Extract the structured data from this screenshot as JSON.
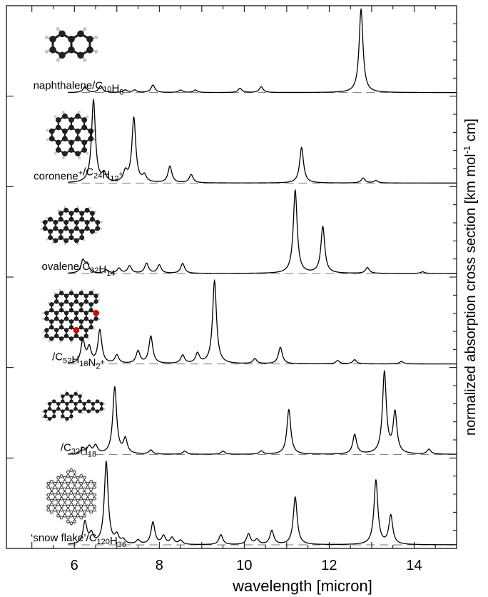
{
  "chart_data": {
    "type": "line",
    "xlabel": "wavelength [micron]",
    "ylabel": "normalized absorption cross section [km mol⁻¹ cm]",
    "xlim": [
      4.4,
      15
    ],
    "x_ticks": [
      6,
      8,
      10,
      12,
      14
    ],
    "x_tick_labels": [
      "6",
      "8",
      "10",
      "12",
      "14"
    ],
    "grid": false,
    "panels": [
      {
        "label": "naphthalene/C10H8",
        "label_parts": [
          [
            "naphthalene/C",
            ""
          ],
          [
            "10",
            "sub"
          ],
          [
            "H",
            ""
          ],
          [
            "8",
            "sub"
          ]
        ],
        "molecule": "naphthalene",
        "peaks": [
          [
            6.25,
            0.07
          ],
          [
            6.62,
            0.08
          ],
          [
            7.2,
            0.03
          ],
          [
            7.42,
            0.03
          ],
          [
            7.85,
            0.09
          ],
          [
            8.5,
            0.03
          ],
          [
            8.85,
            0.03
          ],
          [
            9.9,
            0.05
          ],
          [
            10.4,
            0.07
          ],
          [
            12.75,
            1.0
          ]
        ]
      },
      {
        "label": "coronene+/C24H12+",
        "label_parts": [
          [
            "coronene",
            ""
          ],
          [
            "+",
            "sup"
          ],
          [
            "/C",
            ""
          ],
          [
            "24",
            "sub"
          ],
          [
            "H",
            ""
          ],
          [
            "12",
            "sub"
          ],
          [
            "+",
            "sup"
          ]
        ],
        "molecule": "coronene",
        "peaks": [
          [
            6.45,
            1.0
          ],
          [
            6.7,
            0.1
          ],
          [
            7.2,
            0.12
          ],
          [
            7.4,
            0.78
          ],
          [
            7.65,
            0.08
          ],
          [
            8.25,
            0.2
          ],
          [
            8.75,
            0.1
          ],
          [
            11.35,
            0.43
          ],
          [
            12.8,
            0.06
          ],
          [
            13.1,
            0.03
          ]
        ]
      },
      {
        "label": "ovalene/C32H14",
        "label_parts": [
          [
            "ovalene/C",
            ""
          ],
          [
            "32",
            "sub"
          ],
          [
            "H",
            ""
          ],
          [
            "14",
            "sub"
          ]
        ],
        "molecule": "ovalene",
        "peaks": [
          [
            6.2,
            0.15
          ],
          [
            6.3,
            0.1
          ],
          [
            6.75,
            0.04
          ],
          [
            7.05,
            0.06
          ],
          [
            7.3,
            0.09
          ],
          [
            7.7,
            0.12
          ],
          [
            8.0,
            0.1
          ],
          [
            8.55,
            0.12
          ],
          [
            11.2,
            1.0
          ],
          [
            11.85,
            0.56
          ],
          [
            12.9,
            0.07
          ],
          [
            14.2,
            0.02
          ]
        ]
      },
      {
        "label": "/C52H18N2+",
        "label_parts": [
          [
            "/C",
            ""
          ],
          [
            "52",
            "sub"
          ],
          [
            "H",
            ""
          ],
          [
            "18",
            "sub"
          ],
          [
            "N",
            ""
          ],
          [
            "2",
            "sub"
          ],
          [
            "+",
            "sup"
          ]
        ],
        "molecule": "c52",
        "peaks": [
          [
            6.2,
            0.28
          ],
          [
            6.35,
            0.18
          ],
          [
            6.6,
            0.4
          ],
          [
            7.0,
            0.1
          ],
          [
            7.5,
            0.15
          ],
          [
            7.8,
            0.33
          ],
          [
            8.55,
            0.1
          ],
          [
            8.9,
            0.12
          ],
          [
            9.3,
            1.0
          ],
          [
            10.25,
            0.06
          ],
          [
            10.85,
            0.2
          ],
          [
            12.2,
            0.04
          ],
          [
            12.6,
            0.05
          ],
          [
            13.7,
            0.03
          ]
        ]
      },
      {
        "label": "/C32H18",
        "label_parts": [
          [
            "/C",
            ""
          ],
          [
            "32",
            "sub"
          ],
          [
            "H",
            ""
          ],
          [
            "18",
            "sub"
          ]
        ],
        "molecule": "c32",
        "peaks": [
          [
            6.2,
            0.07
          ],
          [
            6.35,
            0.09
          ],
          [
            6.5,
            0.1
          ],
          [
            6.95,
            0.82
          ],
          [
            7.2,
            0.18
          ],
          [
            7.8,
            0.05
          ],
          [
            8.6,
            0.04
          ],
          [
            9.5,
            0.04
          ],
          [
            10.4,
            0.04
          ],
          [
            11.05,
            0.55
          ],
          [
            12.6,
            0.24
          ],
          [
            13.3,
            1.0
          ],
          [
            13.55,
            0.5
          ],
          [
            14.35,
            0.06
          ]
        ]
      },
      {
        "label": "'snow flake'/C120H36",
        "label_parts": [
          [
            "‘snow flake’/C",
            ""
          ],
          [
            "120",
            "sub"
          ],
          [
            "H",
            ""
          ],
          [
            "36",
            "sub"
          ]
        ],
        "molecule": "snowflake",
        "peaks": [
          [
            6.25,
            0.27
          ],
          [
            6.4,
            0.12
          ],
          [
            6.75,
            1.0
          ],
          [
            7.0,
            0.1
          ],
          [
            7.15,
            0.05
          ],
          [
            7.5,
            0.05
          ],
          [
            7.85,
            0.27
          ],
          [
            8.1,
            0.1
          ],
          [
            8.3,
            0.08
          ],
          [
            8.5,
            0.05
          ],
          [
            9.45,
            0.12
          ],
          [
            10.1,
            0.13
          ],
          [
            10.3,
            0.06
          ],
          [
            10.65,
            0.17
          ],
          [
            11.2,
            0.58
          ],
          [
            13.1,
            0.78
          ],
          [
            13.45,
            0.35
          ]
        ]
      }
    ]
  }
}
